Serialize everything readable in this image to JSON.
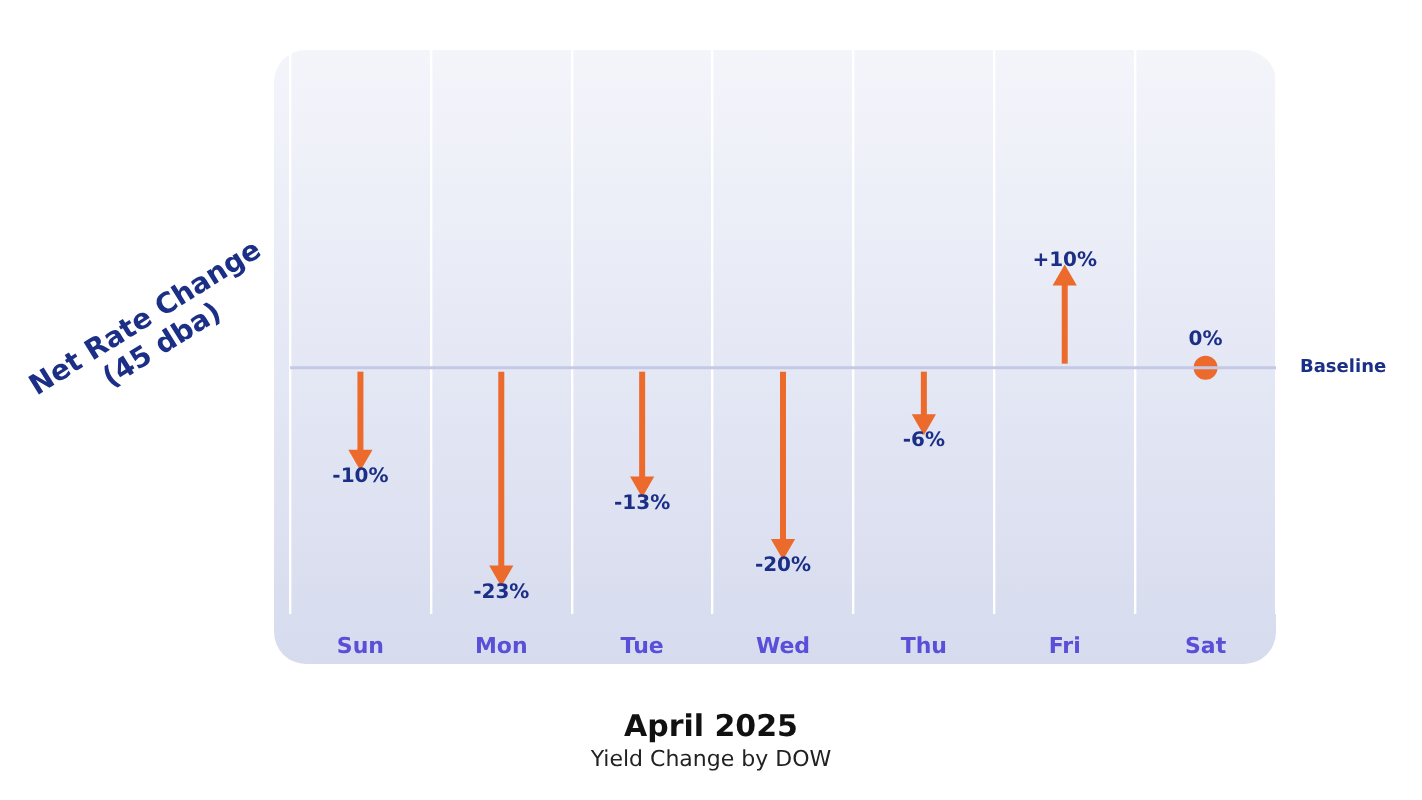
{
  "chart_data": {
    "type": "lollipop",
    "marker": "triangle",
    "title": "April 2025",
    "subtitle": "Yield Change by DOW",
    "ylabel": "Net Rate Change\n(45 dba)",
    "categories": [
      "Sun",
      "Mon",
      "Tue",
      "Wed",
      "Thu",
      "Fri",
      "Sat"
    ],
    "values": [
      -10,
      -23,
      -13,
      -20,
      -6,
      10,
      0
    ],
    "value_labels": [
      "-10%",
      "-23%",
      "-13%",
      "-20%",
      "-6%",
      "+10%",
      "0%"
    ],
    "color": "#ec6a2c",
    "relative": false,
    "ref_lines": [
      {
        "axis": "y",
        "value": 0,
        "label": "Baseline",
        "color": "#c5c9e6"
      }
    ],
    "grid": "x",
    "legend": false,
    "tick_labels": "x"
  }
}
